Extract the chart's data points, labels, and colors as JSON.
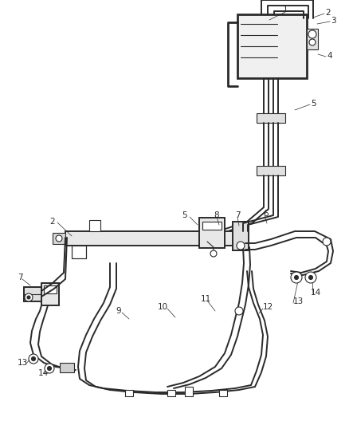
{
  "bg_color": "#ffffff",
  "line_color": "#2a2a2a",
  "lw_main": 1.4,
  "lw_thin": 0.8,
  "lw_thick": 2.0,
  "fs": 7.5,
  "fig_w": 4.38,
  "fig_h": 5.33,
  "dpi": 100
}
